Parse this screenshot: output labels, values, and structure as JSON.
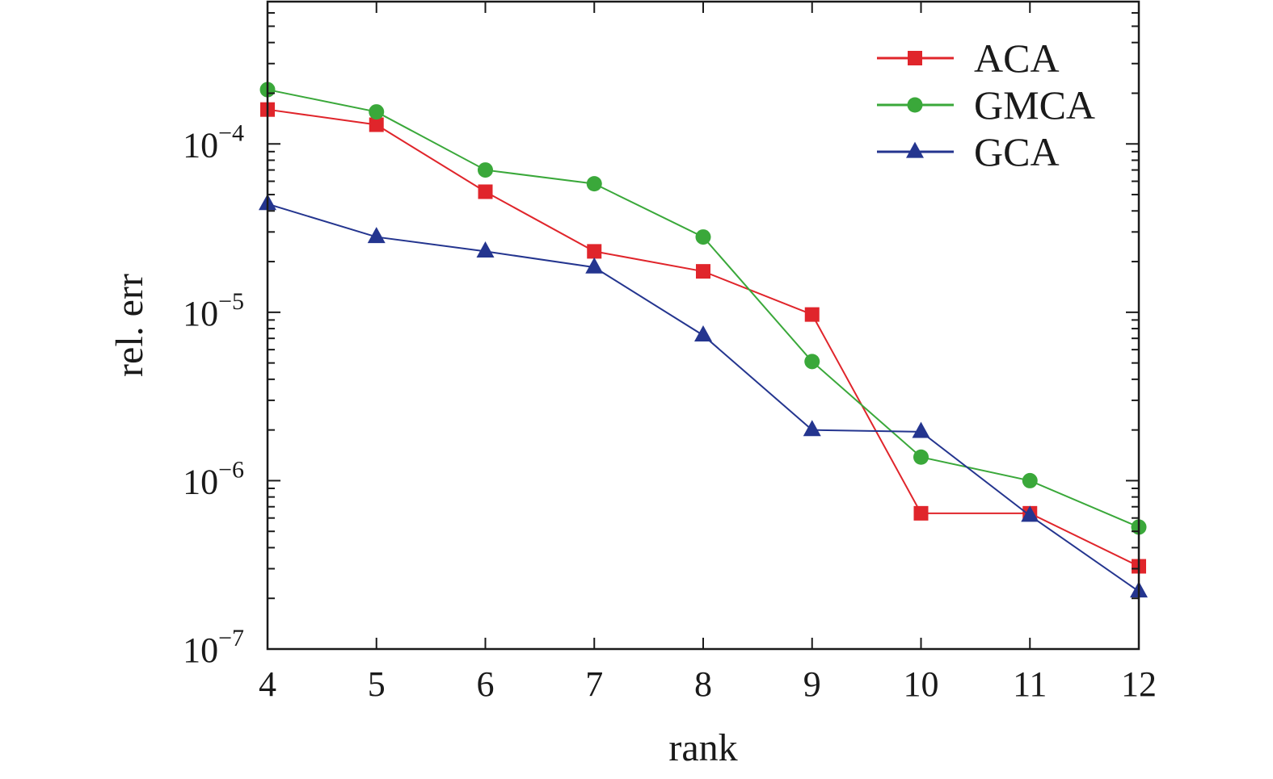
{
  "chart_data": {
    "type": "line",
    "xlabel": "rank",
    "ylabel": "rel. err",
    "xlim": [
      4,
      12
    ],
    "ylim": [
      1e-07,
      0.0007
    ],
    "y_scale": "log",
    "x_ticks": [
      4,
      5,
      6,
      7,
      8,
      9,
      10,
      11,
      12
    ],
    "y_ticks": [
      {
        "base": "10",
        "exp": "−7",
        "value": 1e-07
      },
      {
        "base": "10",
        "exp": "−6",
        "value": 1e-06
      },
      {
        "base": "10",
        "exp": "−5",
        "value": 1e-05
      },
      {
        "base": "10",
        "exp": "−4",
        "value": 0.0001
      }
    ],
    "grid": false,
    "legend_position": "top-right",
    "x": [
      4,
      5,
      6,
      7,
      8,
      9,
      10,
      11,
      12
    ],
    "series": [
      {
        "name": "ACA",
        "color": "#e0252b",
        "marker": "square",
        "values": [
          0.00016,
          0.00013,
          5.2e-05,
          2.3e-05,
          1.75e-05,
          9.7e-06,
          6.4e-07,
          6.4e-07,
          3.1e-07
        ]
      },
      {
        "name": "GMCA",
        "color": "#3aa83a",
        "marker": "circle",
        "values": [
          0.00021,
          0.000155,
          7e-05,
          5.8e-05,
          2.8e-05,
          5.1e-06,
          1.38e-06,
          1e-06,
          5.3e-07
        ]
      },
      {
        "name": "GCA",
        "color": "#24358f",
        "marker": "triangle",
        "values": [
          4.4e-05,
          2.8e-05,
          2.3e-05,
          1.85e-05,
          7.3e-06,
          2e-06,
          1.95e-06,
          6.2e-07,
          2.2e-07
        ]
      }
    ]
  }
}
